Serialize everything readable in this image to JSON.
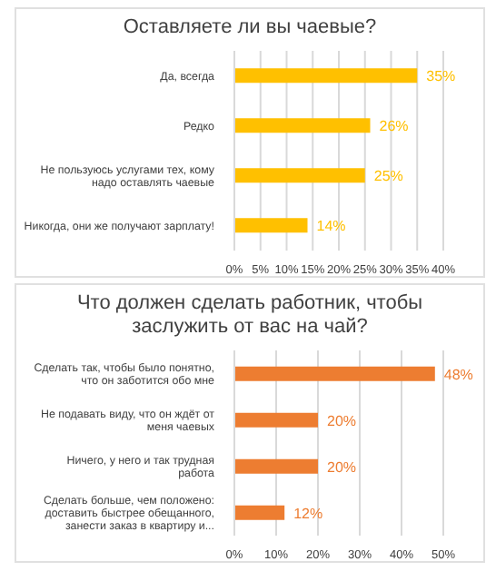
{
  "chart_data": [
    {
      "type": "bar",
      "orientation": "horizontal",
      "title": "Оставляете ли вы чаевые?",
      "categories": [
        "Да, всегда",
        "Редко",
        "Не пользуюсь услугами тех, кому надо оставлять чаевые",
        "Никогда, они же получают зарплату!"
      ],
      "values": [
        35,
        26,
        25,
        14
      ],
      "color": "#ffc000",
      "value_labels": [
        "35%",
        "26%",
        "25%",
        "14%"
      ],
      "xlim": [
        0,
        40
      ],
      "xticks": [
        {
          "value": 0,
          "label": "0%"
        },
        {
          "value": 5,
          "label": "5%"
        },
        {
          "value": 10,
          "label": "10%"
        },
        {
          "value": 15,
          "label": "15%"
        },
        {
          "value": 20,
          "label": "20%"
        },
        {
          "value": 25,
          "label": "25%"
        },
        {
          "value": 30,
          "label": "30%"
        },
        {
          "value": 35,
          "label": "35%"
        },
        {
          "value": 40,
          "label": "40%"
        }
      ],
      "grid": "x",
      "legend": false
    },
    {
      "type": "bar",
      "orientation": "horizontal",
      "title": "Что должен сделать работник, чтобы заслужить от вас на чай?",
      "categories": [
        "Сделать так, чтобы было понятно, что он заботится обо мне",
        "Не подавать виду, что он ждёт от меня чаевых",
        "Ничего, у него и так трудная работа",
        "Сделать больше, чем положено: доставить быстрее обещанного, занести заказ в квартиру и..."
      ],
      "values": [
        48,
        20,
        20,
        12
      ],
      "color": "#ed7d31",
      "value_labels": [
        "48%",
        "20%",
        "20%",
        "12%"
      ],
      "xlim": [
        0,
        50
      ],
      "xticks": [
        {
          "value": 0,
          "label": "0%"
        },
        {
          "value": 10,
          "label": "10%"
        },
        {
          "value": 20,
          "label": "20%"
        },
        {
          "value": 30,
          "label": "30%"
        },
        {
          "value": 40,
          "label": "40%"
        },
        {
          "value": 50,
          "label": "50%"
        }
      ],
      "grid": "x",
      "legend": false
    }
  ]
}
